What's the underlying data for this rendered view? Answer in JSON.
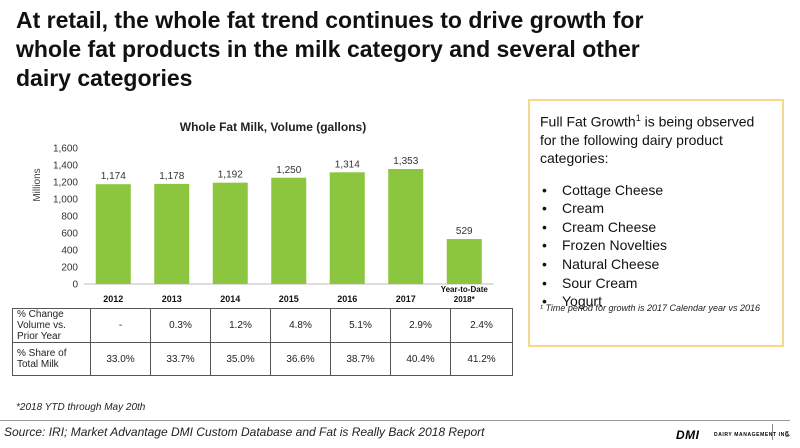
{
  "headline": {
    "line1": "At retail, the whole fat trend continues to drive growth for",
    "line2": "whole fat products in the milk category and several other",
    "line3": "dairy categories"
  },
  "chart_data": {
    "type": "bar",
    "title": "Whole Fat Milk, Volume (gallons)",
    "ylabel": "Millions",
    "xlabel": "",
    "ylim": [
      0,
      1600
    ],
    "yticks": [
      "0",
      "200",
      "400",
      "600",
      "800",
      "1,000",
      "1,200",
      "1,400",
      "1,600"
    ],
    "categories": [
      "2012",
      "2013",
      "2014",
      "2015",
      "2016",
      "2017",
      "Year-to-Date 2018*"
    ],
    "category_lines": [
      [
        "2012"
      ],
      [
        "2013"
      ],
      [
        "2014"
      ],
      [
        "2015"
      ],
      [
        "2016"
      ],
      [
        "2017"
      ],
      [
        "Year-to-Date",
        "2018*"
      ]
    ],
    "values": [
      1174,
      1178,
      1192,
      1250,
      1314,
      1353,
      529
    ],
    "value_labels": [
      "1,174",
      "1,178",
      "1,192",
      "1,250",
      "1,314",
      "1,353",
      "529"
    ],
    "bar_color": "#8cc63f",
    "grid": false
  },
  "table": {
    "rows": [
      {
        "label": "% Change Volume vs. Prior Year",
        "values": [
          "-",
          "0.3%",
          "1.2%",
          "4.8%",
          "5.1%",
          "2.9%",
          "2.4%"
        ]
      },
      {
        "label": "% Share of Total Milk",
        "values": [
          "33.0%",
          "33.7%",
          "35.0%",
          "36.6%",
          "38.7%",
          "40.4%",
          "41.2%"
        ]
      }
    ]
  },
  "footnote": "*2018 YTD through May 20th",
  "callout": {
    "heading_part1": "Full Fat Growth",
    "heading_sup": "1",
    "heading_part2": " is being observed for the following dairy product categories:",
    "bullet_glyph": "•",
    "items": [
      "Cottage Cheese",
      "Cream",
      "Cream Cheese",
      "Frozen Novelties",
      "Natural Cheese",
      "Sour Cream",
      "Yogurt"
    ],
    "footnote": "¹ Time period for growth is 2017 Calendar year vs 2016",
    "border_color": "#f2d98f"
  },
  "footer": {
    "source": "Source: IRI; Market Advantage DMI Custom Database and Fat is Really Back 2018 Report",
    "logo": "DMI",
    "logo_sub": "DAIRY MANAGEMENT INC.",
    "page_number": "5"
  }
}
